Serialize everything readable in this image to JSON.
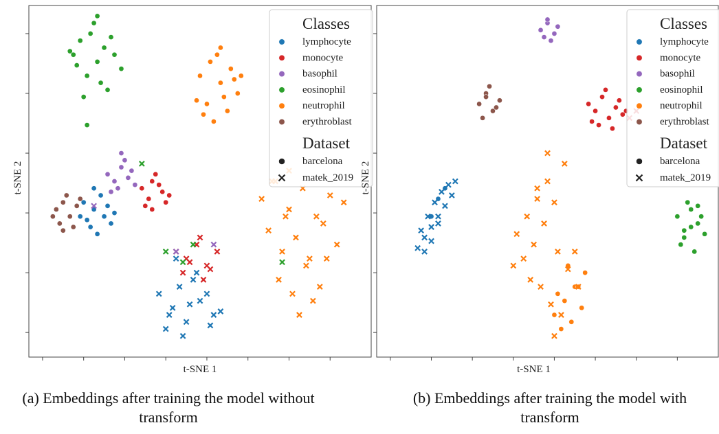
{
  "chart_data": [
    {
      "type": "scatter",
      "xlabel": "t-SNE 1",
      "ylabel": "t-SNE 2",
      "caption": "(a) Embeddings after training the model without transform",
      "xlim": [
        0,
        100
      ],
      "ylim": [
        0,
        100
      ],
      "xticks": [
        4,
        16,
        28,
        40,
        52,
        64,
        76,
        88
      ],
      "yticks": [
        7,
        24,
        41,
        58,
        75,
        92
      ],
      "legend_title": "Classes",
      "dataset_title": "Dataset",
      "datasets": [
        {
          "name": "barcelona",
          "marker": "circle"
        },
        {
          "name": "matek_2019",
          "marker": "x"
        }
      ],
      "series": [
        {
          "name": "lymphocyte",
          "color": "#1f77b4",
          "groups": [
            {
              "x": [
                16,
                19,
                22,
                24,
                18,
                21,
                15,
                23,
                20,
                17,
                25,
                19
              ],
              "y": [
                44,
                42,
                40,
                38,
                37,
                46,
                40,
                43,
                35,
                39,
                41,
                48
              ]
            },
            {
              "x": [
                38,
                42,
                46,
                50,
                54,
                40,
                44,
                48,
                52,
                56,
                45,
                49,
                41,
                53,
                47,
                43
              ],
              "y": [
                18,
                14,
                10,
                16,
                12,
                8,
                20,
                22,
                18,
                13,
                6,
                24,
                12,
                9,
                15,
                28
              ]
            }
          ]
        },
        {
          "name": "monocyte",
          "color": "#d62728",
          "groups": [
            {
              "x": [
                33,
                36,
                39,
                40,
                35,
                37,
                34,
                38,
                41,
                36
              ],
              "y": [
                48,
                50,
                47,
                44,
                45,
                52,
                43,
                49,
                46,
                42
              ]
            },
            {
              "x": [
                43,
                46,
                49,
                52,
                55,
                45,
                50,
                53,
                47,
                51
              ],
              "y": [
                30,
                28,
                32,
                26,
                30,
                24,
                34,
                25,
                27,
                22
              ]
            }
          ]
        },
        {
          "name": "basophil",
          "color": "#9467bd",
          "groups": [
            {
              "x": [
                23,
                25,
                27,
                29,
                31,
                26,
                28,
                24,
                30,
                27
              ],
              "y": [
                52,
                50,
                54,
                51,
                49,
                48,
                56,
                47,
                53,
                58
              ]
            },
            {
              "x": [
                43,
                54,
                19
              ],
              "y": [
                30,
                32,
                43
              ]
            }
          ]
        },
        {
          "name": "eosinophil",
          "color": "#2ca02c",
          "groups": [
            {
              "x": [
                12,
                15,
                18,
                20,
                22,
                25,
                27,
                17,
                21,
                24,
                14,
                19,
                23,
                16,
                20,
                13,
                17
              ],
              "y": [
                87,
                90,
                92,
                84,
                88,
                86,
                82,
                80,
                78,
                91,
                83,
                95,
                76,
                74,
                97,
                86,
                66
              ]
            },
            {
              "x": [
                40,
                45,
                33,
                48,
                74
              ],
              "y": [
                30,
                27,
                55,
                32,
                27
              ]
            }
          ]
        },
        {
          "name": "neutrophil",
          "color": "#ff7f0e",
          "groups": [
            {
              "x": [
                50,
                53,
                56,
                59,
                61,
                52,
                55,
                58,
                60,
                54,
                57,
                51,
                49,
                62,
                56
              ],
              "y": [
                80,
                84,
                78,
                82,
                75,
                72,
                86,
                70,
                79,
                67,
                74,
                69,
                73,
                80,
                88
              ]
            },
            {
              "x": [
                68,
                72,
                76,
                80,
                84,
                88,
                92,
                70,
                74,
                78,
                82,
                86,
                90,
                73,
                77,
                81,
                85,
                79,
                83,
                75,
                87,
                71,
                76
              ],
              "y": [
                45,
                50,
                42,
                48,
                40,
                46,
                44,
                36,
                30,
                34,
                28,
                38,
                32,
                22,
                18,
                26,
                20,
                12,
                16,
                40,
                28,
                50,
                53
              ]
            }
          ]
        },
        {
          "name": "erythroblast",
          "color": "#8c564b",
          "groups": [
            {
              "x": [
                8,
                10,
                12,
                14,
                9,
                11,
                13,
                7,
                15,
                10
              ],
              "y": [
                42,
                44,
                40,
                43,
                38,
                46,
                37,
                40,
                45,
                36
              ]
            },
            {
              "x": [],
              "y": []
            }
          ]
        }
      ]
    },
    {
      "type": "scatter",
      "xlabel": "t-SNE 1",
      "ylabel": "t-SNE 2",
      "caption": "(b) Embeddings after training the model with transform",
      "xlim": [
        0,
        100
      ],
      "ylim": [
        0,
        100
      ],
      "xticks": [
        4,
        16,
        28,
        40,
        52,
        64,
        76,
        88
      ],
      "yticks": [
        7,
        24,
        41,
        58,
        75,
        92
      ],
      "legend_title": "Classes",
      "dataset_title": "Dataset",
      "datasets": [
        {
          "name": "barcelona",
          "marker": "circle"
        },
        {
          "name": "matek_2019",
          "marker": "x"
        }
      ],
      "series": [
        {
          "name": "lymphocyte",
          "color": "#1f77b4",
          "groups": [
            {
              "x": [
                18,
                20,
                16
              ],
              "y": [
                45,
                48,
                40
              ]
            },
            {
              "x": [
                12,
                14,
                16,
                18,
                20,
                22,
                23,
                13,
                15,
                17,
                19,
                21,
                14,
                16,
                18
              ],
              "y": [
                31,
                34,
                37,
                40,
                43,
                46,
                50,
                36,
                40,
                44,
                47,
                49,
                30,
                33,
                38
              ]
            }
          ]
        },
        {
          "name": "monocyte",
          "color": "#d62728",
          "groups": [
            {
              "x": [
                62,
                64,
                66,
                68,
                70,
                72,
                65,
                67,
                69,
                71,
                63,
                73
              ],
              "y": [
                72,
                70,
                74,
                68,
                71,
                69,
                66,
                76,
                65,
                73,
                67,
                70
              ]
            },
            {
              "x": [
                74,
                76
              ],
              "y": [
                68,
                70
              ]
            }
          ]
        },
        {
          "name": "basophil",
          "color": "#9467bd",
          "groups": [
            {
              "x": [
                48,
                50,
                52,
                53,
                49,
                51,
                50
              ],
              "y": [
                93,
                95,
                92,
                94,
                91,
                90,
                96
              ]
            },
            {
              "x": [],
              "y": []
            }
          ]
        },
        {
          "name": "eosinophil",
          "color": "#2ca02c",
          "groups": [
            {
              "x": [
                88,
                90,
                92,
                94,
                96,
                89,
                91,
                93,
                95,
                90,
                94,
                92
              ],
              "y": [
                40,
                36,
                42,
                38,
                35,
                32,
                44,
                30,
                40,
                34,
                43,
                37
              ]
            },
            {
              "x": [],
              "y": []
            }
          ]
        },
        {
          "name": "neutrophil",
          "color": "#ff7f0e",
          "groups": [
            {
              "x": [
                52,
                55,
                58,
                61,
                54,
                57,
                60,
                56,
                53,
                59
              ],
              "y": [
                12,
                16,
                20,
                24,
                8,
                10,
                14,
                26,
                18,
                20
              ]
            },
            {
              "x": [
                41,
                44,
                47,
                50,
                53,
                56,
                59,
                43,
                46,
                49,
                52,
                55,
                58,
                48,
                51,
                54,
                45,
                50,
                52,
                40,
                47
              ],
              "y": [
                35,
                40,
                45,
                50,
                30,
                25,
                20,
                28,
                32,
                38,
                44,
                55,
                30,
                20,
                15,
                12,
                22,
                58,
                6,
                26,
                48
              ]
            }
          ]
        },
        {
          "name": "erythroblast",
          "color": "#8c564b",
          "groups": [
            {
              "x": [
                30,
                32,
                34,
                36,
                31,
                33,
                35,
                32
              ],
              "y": [
                72,
                75,
                70,
                73,
                68,
                77,
                71,
                74
              ]
            },
            {
              "x": [],
              "y": []
            }
          ]
        }
      ]
    }
  ]
}
